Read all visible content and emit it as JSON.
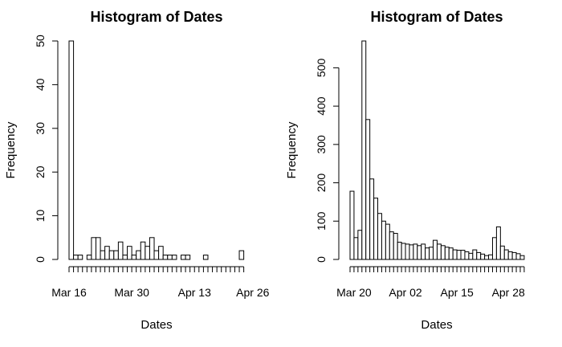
{
  "chart_data": [
    {
      "type": "bar",
      "title": "Histogram of Dates",
      "xlabel": "Dates",
      "ylabel": "Frequency",
      "ylim": [
        0,
        50
      ],
      "y_ticks": [
        0,
        10,
        20,
        30,
        40,
        50
      ],
      "x_ticks": [
        "Mar 16",
        "Mar 30",
        "Apr 13",
        "Apr 26"
      ],
      "x_tick_positions": [
        0,
        14,
        28,
        41
      ],
      "grid": false,
      "values": [
        50,
        1,
        1,
        0,
        1,
        5,
        5,
        2,
        3,
        2,
        2,
        4,
        1,
        3,
        1,
        2,
        4,
        3,
        5,
        2,
        3,
        1,
        1,
        1,
        0,
        1,
        1,
        0,
        0,
        0,
        1,
        0,
        0,
        0,
        0,
        0,
        0,
        0,
        2
      ]
    },
    {
      "type": "bar",
      "title": "Histogram of Dates",
      "xlabel": "Dates",
      "ylabel": "Frequency",
      "ylim": [
        0,
        570
      ],
      "y_ticks": [
        0,
        100,
        200,
        300,
        400,
        500
      ],
      "x_ticks": [
        "Mar 20",
        "Apr 02",
        "Apr 15",
        "Apr 28"
      ],
      "x_tick_positions": [
        1,
        14,
        27,
        40
      ],
      "grid": false,
      "values": [
        178,
        57,
        76,
        570,
        365,
        210,
        160,
        120,
        100,
        92,
        72,
        68,
        45,
        42,
        40,
        38,
        40,
        36,
        40,
        30,
        32,
        50,
        40,
        36,
        32,
        30,
        25,
        24,
        24,
        20,
        16,
        25,
        18,
        14,
        10,
        12,
        57,
        85,
        35,
        25,
        20,
        18,
        15,
        10
      ]
    }
  ]
}
